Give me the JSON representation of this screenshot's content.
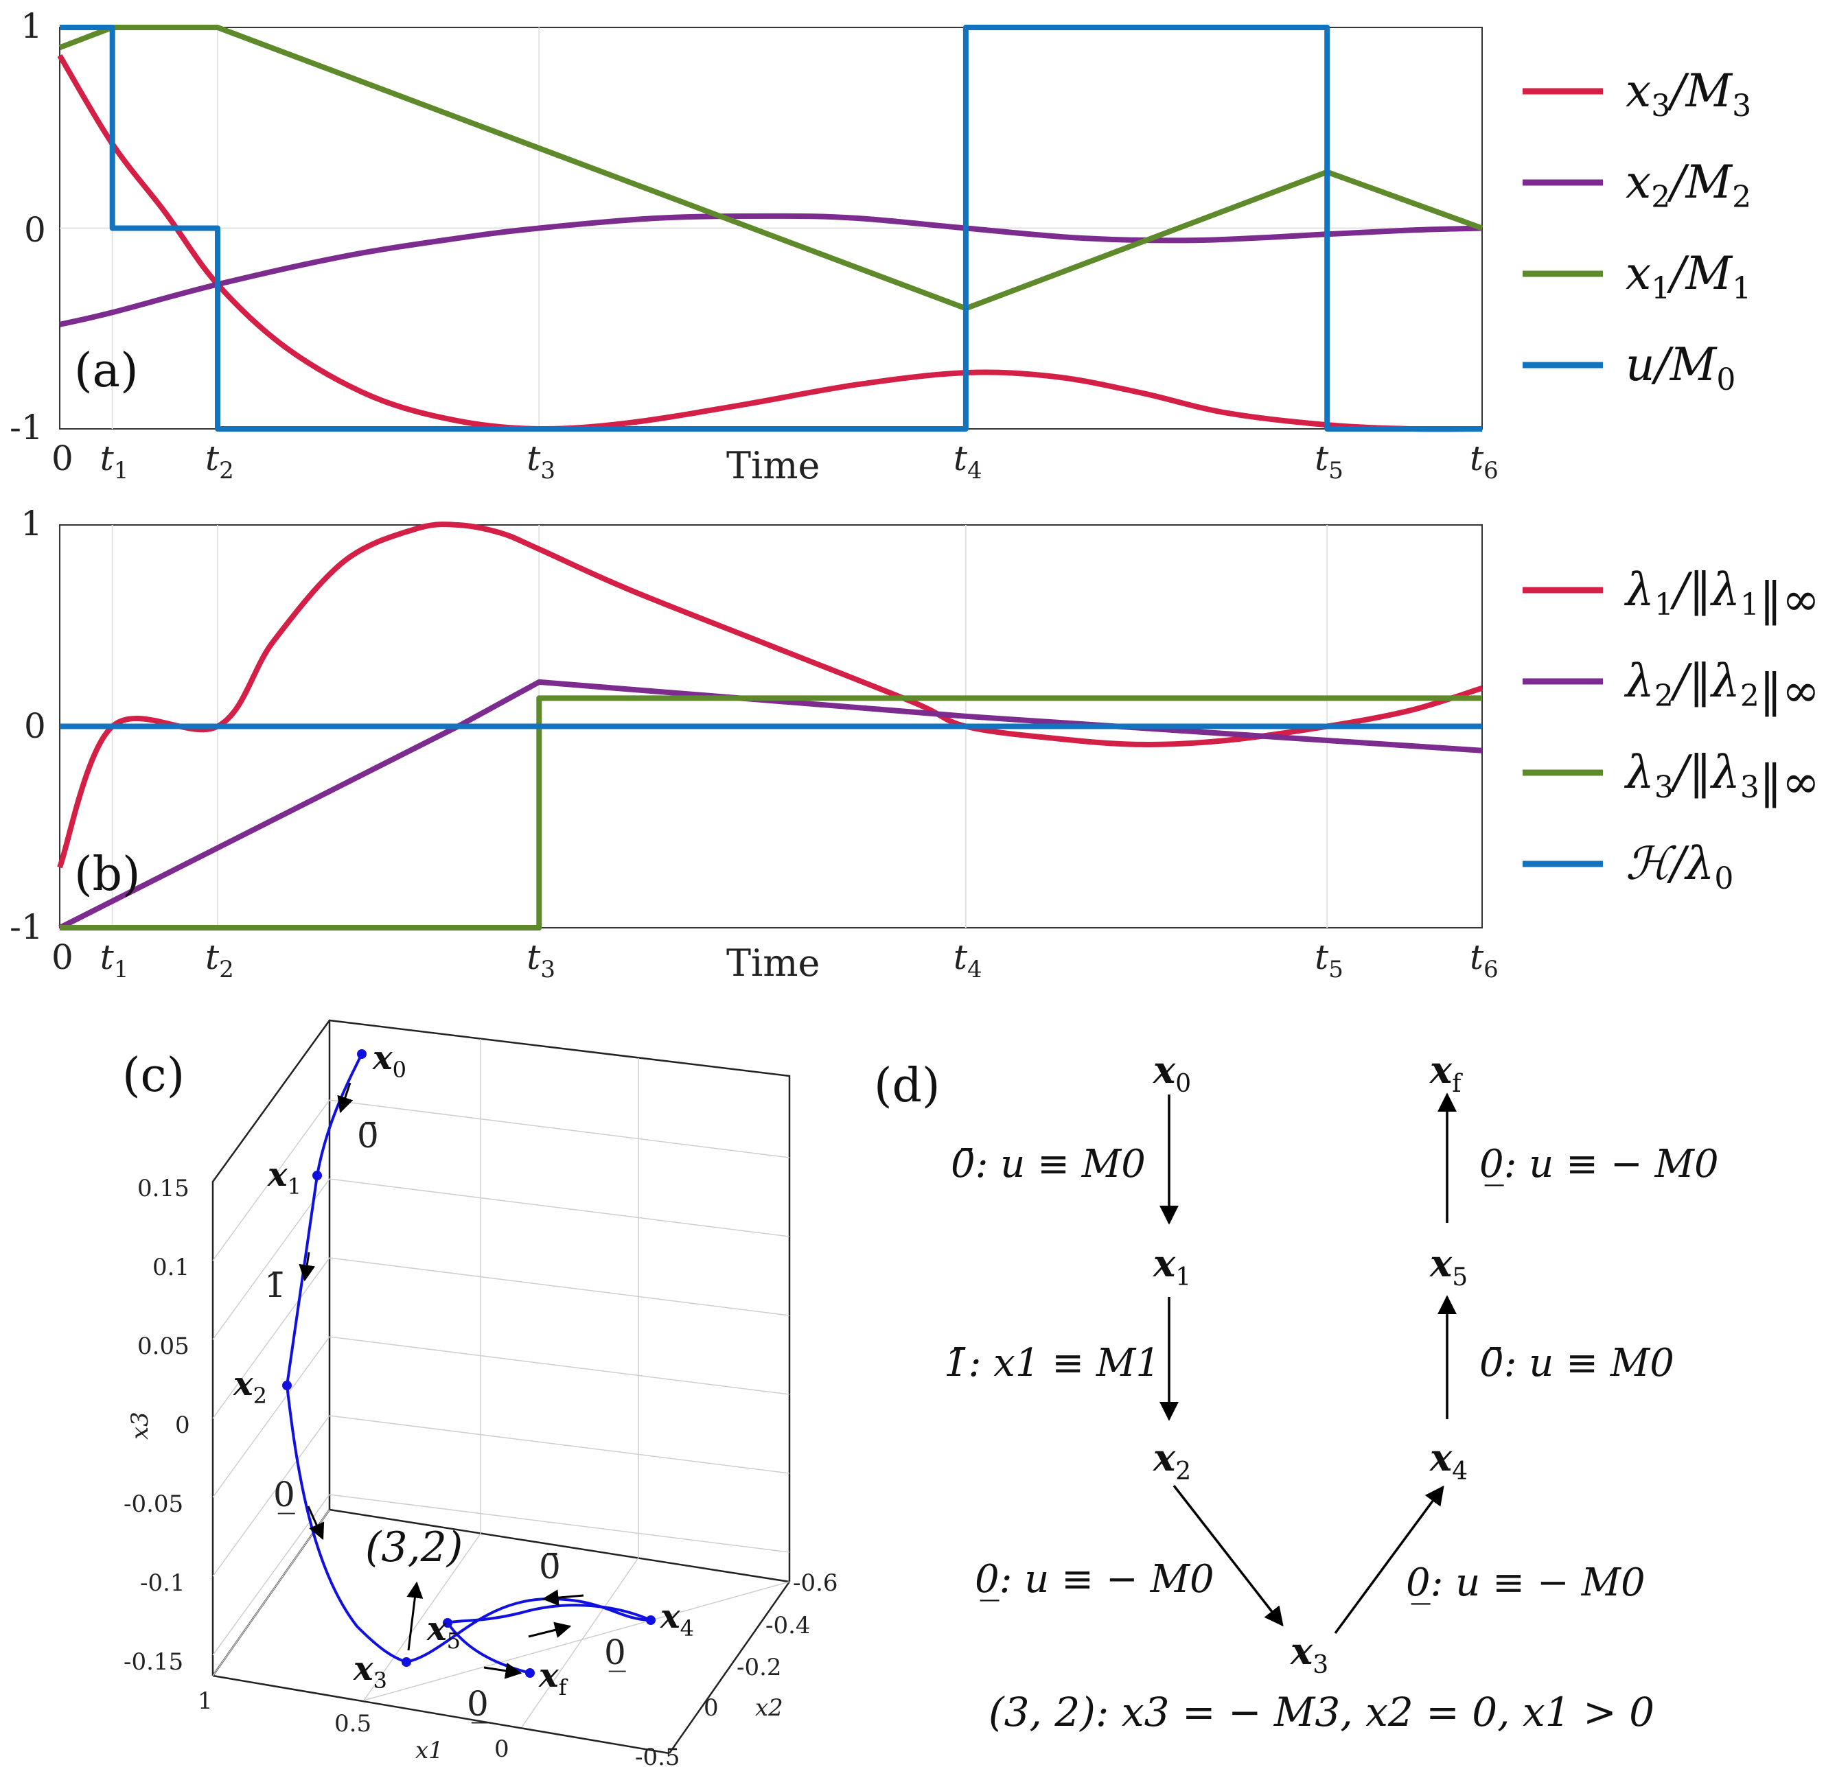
{
  "chart_data": [
    {
      "panel": "(a)",
      "type": "line",
      "xlabel": "Time",
      "x_ticks": [
        "0",
        "t1",
        "t2",
        "t3",
        "t4",
        "t5",
        "t6"
      ],
      "x_tick_values": [
        0,
        0.037,
        0.111,
        0.337,
        0.637,
        0.891,
        1.0
      ],
      "ylim": [
        -1,
        1
      ],
      "y_ticks": [
        "1",
        "0",
        "-1"
      ],
      "grid": true,
      "legend_position": "right",
      "series": [
        {
          "name": "x3/M3",
          "color": "#d41f47",
          "x": [
            0,
            0.037,
            0.074,
            0.111,
            0.16,
            0.22,
            0.28,
            0.337,
            0.4,
            0.48,
            0.56,
            0.637,
            0.7,
            0.76,
            0.82,
            0.891,
            0.95,
            1.0
          ],
          "y": [
            0.86,
            0.42,
            0.08,
            -0.28,
            -0.6,
            -0.84,
            -0.96,
            -1.0,
            -0.97,
            -0.88,
            -0.78,
            -0.72,
            -0.74,
            -0.82,
            -0.92,
            -0.98,
            -1.0,
            -1.0
          ]
        },
        {
          "name": "x2/M2",
          "color": "#7b2c8e",
          "x": [
            0,
            0.037,
            0.111,
            0.2,
            0.28,
            0.337,
            0.42,
            0.5,
            0.56,
            0.637,
            0.72,
            0.8,
            0.891,
            0.95,
            1.0
          ],
          "y": [
            -0.48,
            -0.42,
            -0.28,
            -0.14,
            -0.05,
            0.0,
            0.05,
            0.06,
            0.05,
            0.0,
            -0.05,
            -0.06,
            -0.03,
            -0.01,
            0.0
          ],
          "notes": "passes 0 at t3 and t4"
        },
        {
          "name": "x1/M1",
          "color": "#5e8a2c",
          "x": [
            0,
            0.037,
            0.111,
            0.637,
            0.891,
            1.0
          ],
          "y": [
            0.9,
            1.0,
            1.0,
            -0.4,
            0.28,
            0.0
          ]
        },
        {
          "name": "u/M0",
          "color": "#1273be",
          "x": [
            0,
            0.037,
            0.037,
            0.111,
            0.111,
            0.637,
            0.637,
            0.891,
            0.891,
            1.0
          ],
          "y": [
            1,
            1,
            0,
            0,
            -1,
            -1,
            1,
            1,
            -1,
            -1
          ]
        }
      ]
    },
    {
      "panel": "(b)",
      "type": "line",
      "xlabel": "Time",
      "x_ticks": [
        "0",
        "t1",
        "t2",
        "t3",
        "t4",
        "t5",
        "t6"
      ],
      "x_tick_values": [
        0,
        0.037,
        0.111,
        0.337,
        0.637,
        0.891,
        1.0
      ],
      "ylim": [
        -1,
        1
      ],
      "y_ticks": [
        "1",
        "0",
        "-1"
      ],
      "grid": true,
      "legend_position": "right",
      "series": [
        {
          "name": "λ1/‖λ1‖∞",
          "color": "#d41f47",
          "x": [
            0,
            0.037,
            0.111,
            0.15,
            0.2,
            0.25,
            0.28,
            0.31,
            0.337,
            0.4,
            0.5,
            0.6,
            0.637,
            0.7,
            0.76,
            0.82,
            0.891,
            0.95,
            1.0
          ],
          "y": [
            -0.7,
            0.0,
            0.0,
            0.42,
            0.82,
            0.98,
            1.0,
            0.96,
            0.88,
            0.68,
            0.4,
            0.12,
            0.0,
            -0.06,
            -0.09,
            -0.07,
            0.0,
            0.08,
            0.19
          ]
        },
        {
          "name": "λ2/‖λ2‖∞",
          "color": "#7b2c8e",
          "x": [
            0,
            0.28,
            0.337,
            0.637,
            0.891,
            1.0
          ],
          "y": [
            -1.0,
            0.0,
            0.22,
            0.05,
            -0.07,
            -0.12
          ]
        },
        {
          "name": "λ3/‖λ3‖∞",
          "color": "#5e8a2c",
          "x": [
            0,
            0.337,
            0.337,
            1.0
          ],
          "y": [
            -1.0,
            -1.0,
            0.14,
            0.14
          ]
        },
        {
          "name": "H/λ0",
          "color": "#1273be",
          "x": [
            0,
            1.0
          ],
          "y": [
            0,
            0
          ]
        }
      ]
    }
  ],
  "panels": {
    "a": {
      "label": "(a)",
      "xlabel": "Time",
      "yticks": [
        "1",
        "0",
        "-1"
      ],
      "xticks": [
        {
          "main": "0",
          "sub": ""
        },
        {
          "main": "t",
          "sub": "1"
        },
        {
          "main": "t",
          "sub": "2"
        },
        {
          "main": "t",
          "sub": "3"
        },
        {
          "main": "t",
          "sub": "4"
        },
        {
          "main": "t",
          "sub": "5"
        },
        {
          "main": "t",
          "sub": "6"
        }
      ],
      "legend": [
        {
          "main": "x",
          "sub": "3",
          "rest": "/M",
          "sub2": "3",
          "color": "#d41f47"
        },
        {
          "main": "x",
          "sub": "2",
          "rest": "/M",
          "sub2": "2",
          "color": "#7b2c8e"
        },
        {
          "main": "x",
          "sub": "1",
          "rest": "/M",
          "sub2": "1",
          "color": "#5e8a2c"
        },
        {
          "main": "u",
          "sub": "",
          "rest": "/M",
          "sub2": "0",
          "color": "#1273be"
        }
      ]
    },
    "b": {
      "label": "(b)",
      "xlabel": "Time",
      "yticks": [
        "1",
        "0",
        "-1"
      ],
      "legend": [
        {
          "main": "λ",
          "sub": "1",
          "rest": "/‖λ",
          "sub2": "1",
          "tail": "‖∞",
          "color": "#d41f47"
        },
        {
          "main": "λ",
          "sub": "2",
          "rest": "/‖λ",
          "sub2": "2",
          "tail": "‖∞",
          "color": "#7b2c8e"
        },
        {
          "main": "λ",
          "sub": "3",
          "rest": "/‖λ",
          "sub2": "3",
          "tail": "‖∞",
          "color": "#5e8a2c"
        },
        {
          "main": "ℋ",
          "sub": "",
          "rest": "/λ",
          "sub2": "0",
          "tail": "",
          "color": "#1273be"
        }
      ]
    },
    "c": {
      "label": "(c)",
      "x3_label": "x3",
      "x1_label": "x1",
      "x2_label": "x2",
      "x3_ticks": [
        "0.15",
        "0.1",
        "0.05",
        "0",
        "-0.05",
        "-0.1",
        "-0.15"
      ],
      "x1_ticks": [
        "1",
        "0.5",
        "0"
      ],
      "x2_ticks": [
        "-0.6",
        "-0.4",
        "-0.2",
        "0",
        "-0.5"
      ],
      "points": [
        "x0",
        "x1",
        "x2",
        "x3",
        "x4",
        "x5",
        "xf"
      ],
      "arc_labels": [
        "0̄",
        "1̄",
        "0̲",
        "0̄",
        "0̲",
        "0̲"
      ],
      "boundary_label": "(3,2)",
      "trajectory_color": "#1010e0"
    },
    "d": {
      "label": "(d)",
      "nodes": [
        "x0",
        "x1",
        "x2",
        "x3",
        "x4",
        "x5",
        "xf"
      ],
      "edges": [
        {
          "from": "x0",
          "to": "x1",
          "label": "0̄: u ≡ M0"
        },
        {
          "from": "x1",
          "to": "x2",
          "label": "1̄: x1 ≡ M1"
        },
        {
          "from": "x2",
          "to": "x3",
          "label": "0̲: u ≡ − M0"
        },
        {
          "from": "x3",
          "to": "x4",
          "label": "0̲: u ≡ − M0"
        },
        {
          "from": "x4",
          "to": "x5",
          "label": "0̄: u ≡ M0"
        },
        {
          "from": "x5",
          "to": "xf",
          "label": "0̲: u ≡ − M0"
        }
      ],
      "footnote": "(3, 2): x3 = − M3, x2 = 0, x1 > 0"
    }
  }
}
